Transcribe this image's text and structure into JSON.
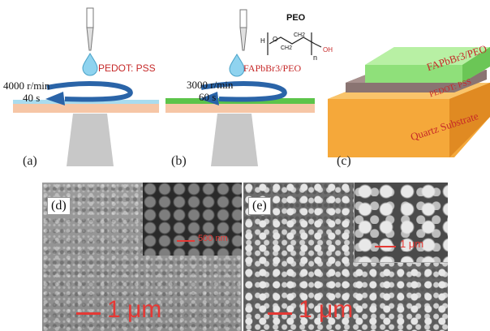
{
  "panel_a": {
    "label": "(a)",
    "speed": "4000 r/min",
    "time": "40 s",
    "solution": "PEDOT: PSS"
  },
  "panel_b": {
    "label": "(b)",
    "speed": "3000 r/min",
    "time": "60 s",
    "solution": "FAPbBr3/PEO",
    "polymer_name": "PEO",
    "chem_h": "H",
    "chem_o": "O",
    "chem_ch2a": "CH2",
    "chem_ch2b": "CH2",
    "chem_n": "n",
    "chem_oh": "OH"
  },
  "panel_c": {
    "label": "(c)",
    "layer_top": "FAPbBr3/PEO",
    "layer_mid": "PEDOT: PSS",
    "layer_bottom": "Quartz Substrate"
  },
  "panel_d": {
    "label": "(d)",
    "scale_main": "1 μm",
    "scale_inset": "500 nm"
  },
  "panel_e": {
    "label": "(e)",
    "scale_main": "1 μm",
    "scale_inset": "1 μm"
  },
  "colors": {
    "pedot_layer": "#a9dcef",
    "perovskite_layer": "#5cc44a",
    "substrate": "#f6c6a6",
    "stand": "#c8c8c8",
    "arrow": "#2a64a8",
    "label_red": "#c62828",
    "scale_red": "#e53935"
  }
}
